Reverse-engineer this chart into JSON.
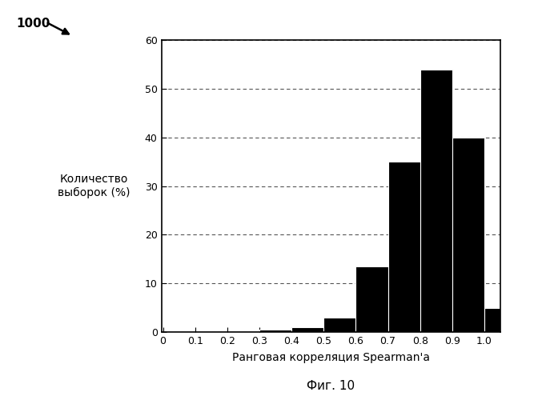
{
  "bar_left_edges": [
    0.0,
    0.1,
    0.2,
    0.3,
    0.4,
    0.5,
    0.6,
    0.7,
    0.8,
    0.9,
    1.0
  ],
  "bar_heights": [
    0.0,
    0.0,
    0.0,
    0.5,
    1.0,
    3.0,
    13.5,
    35.0,
    54.0,
    40.0,
    5.0
  ],
  "bar_width": 0.1,
  "bar_color": "#000000",
  "xlim": [
    -0.005,
    1.05
  ],
  "ylim": [
    0,
    60
  ],
  "xticks": [
    0,
    0.1,
    0.2,
    0.3,
    0.4,
    0.5,
    0.6,
    0.7,
    0.8,
    0.9,
    1.0
  ],
  "yticks": [
    0,
    10,
    20,
    30,
    40,
    50,
    60
  ],
  "xlabel": "Ранговая корреляция Spearman'a",
  "ylabel": "Количество\nвыборок (%)",
  "caption": "Фиг. 10",
  "annotation_text": "1000",
  "grid_color": "#555555",
  "background_color": "#ffffff",
  "fig_width": 6.72,
  "fig_height": 5.0,
  "dpi": 100
}
